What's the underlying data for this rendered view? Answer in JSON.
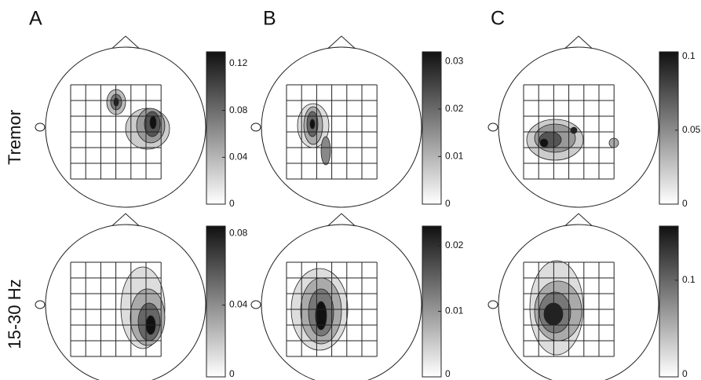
{
  "panels": [
    {
      "label": "A"
    },
    {
      "label": "B"
    },
    {
      "label": "C"
    }
  ],
  "row_labels": [
    "Tremor",
    "15-30 Hz"
  ],
  "colorbars": [
    {
      "type": "colorbar",
      "ylim": [
        0,
        0.13
      ],
      "yticks": [
        0,
        0.04,
        0.08,
        0.12
      ]
    },
    {
      "type": "colorbar",
      "ylim": [
        0,
        0.032
      ],
      "yticks": [
        0,
        0.01,
        0.02,
        0.03
      ]
    },
    {
      "type": "colorbar",
      "ylim": [
        0,
        0.103
      ],
      "yticks": [
        0,
        0.05,
        0.1
      ]
    },
    {
      "type": "colorbar",
      "ylim": [
        0,
        0.084
      ],
      "yticks": [
        0,
        0.04,
        0.08
      ]
    },
    {
      "type": "colorbar",
      "ylim": [
        0,
        0.023
      ],
      "yticks": [
        0,
        0.01,
        0.02
      ]
    },
    {
      "type": "colorbar",
      "ylim": [
        0,
        0.156
      ],
      "yticks": [
        0,
        0.1
      ]
    }
  ]
}
